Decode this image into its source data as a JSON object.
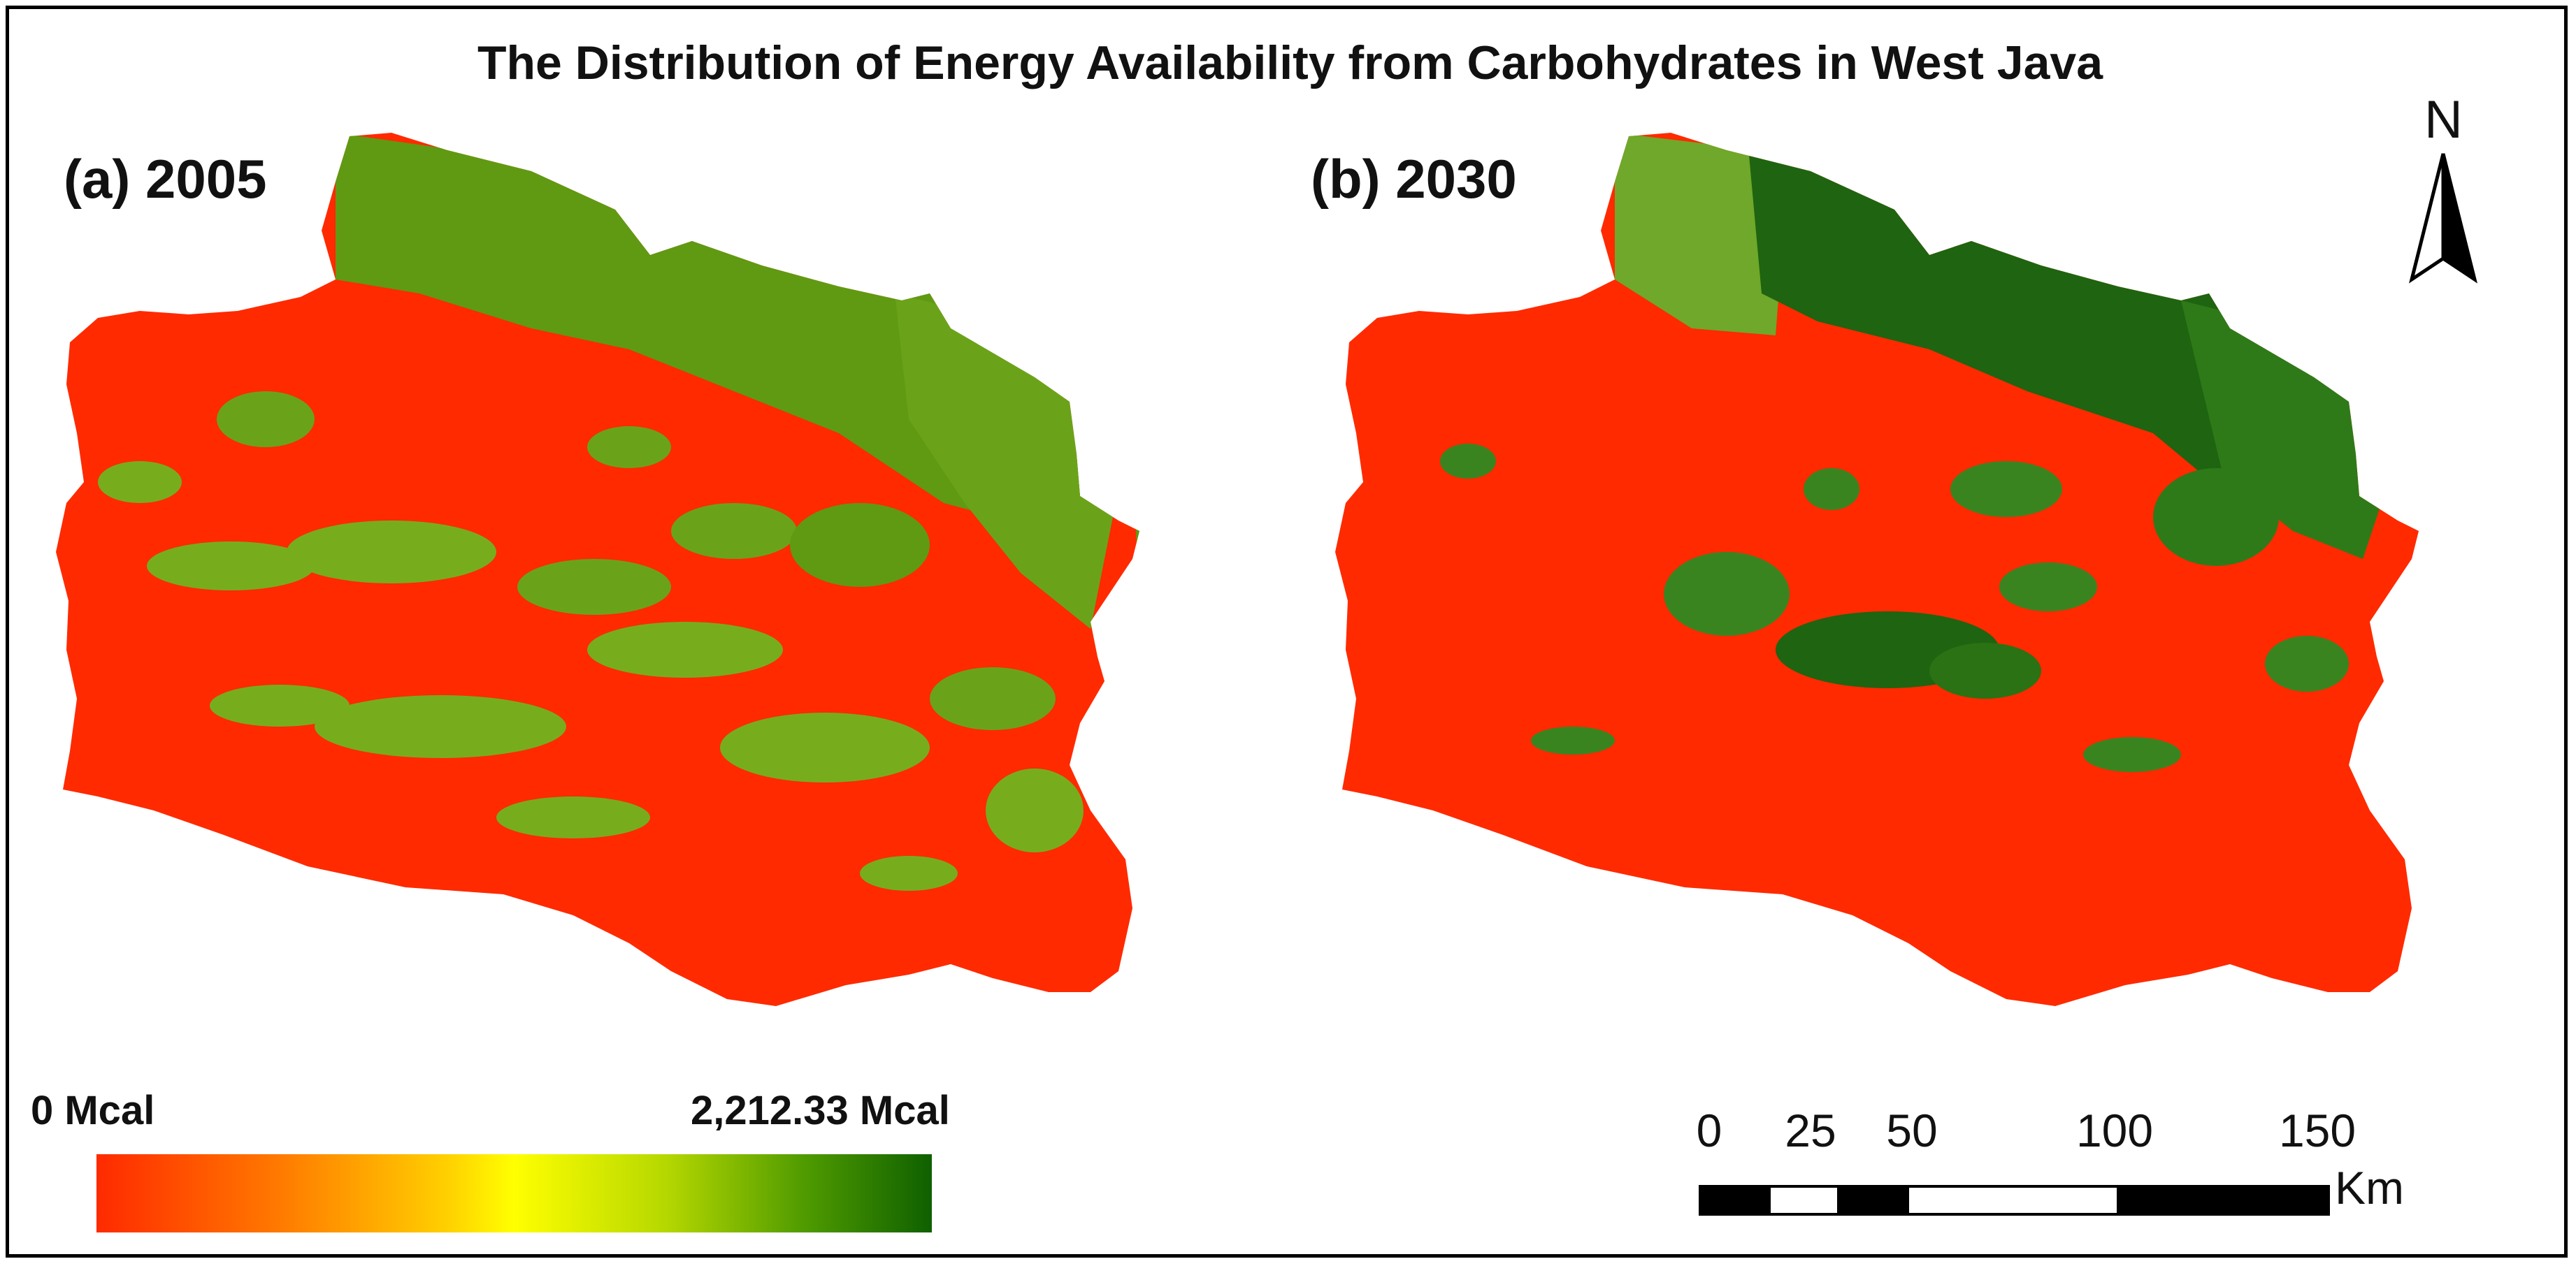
{
  "title": "The Distribution of Energy Availability from Carbohydrates in West Java",
  "panels": [
    {
      "label": "(a) 2005"
    },
    {
      "label": "(b) 2030"
    }
  ],
  "legend": {
    "min_label": "0 Mcal",
    "max_label": "2,212.33 Mcal",
    "colors": [
      "#ff2a00",
      "#ff7a00",
      "#ffd000",
      "#ffff00",
      "#b6d800",
      "#4e9a00",
      "#0f6000"
    ]
  },
  "scale_bar": {
    "ticks": [
      "0",
      "25",
      "50",
      "100",
      "150"
    ],
    "unit": "Km"
  },
  "north": {
    "letter": "N"
  },
  "colors": {
    "low": "#ff2a00",
    "mid_green": "#5f9a12",
    "light_green": "#77ad1c",
    "dark_green": "#1f6410"
  }
}
